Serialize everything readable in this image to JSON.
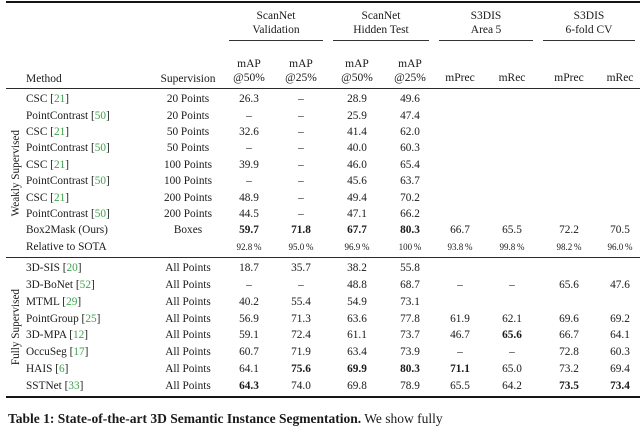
{
  "accent": {
    "cite_green": "#3fa34d",
    "rule_dark": "#151515"
  },
  "header": {
    "method": "Method",
    "supervision": "Supervision",
    "groups": [
      {
        "line1": "ScanNet",
        "line2": "Validation"
      },
      {
        "line1": "ScanNet",
        "line2": "Hidden Test"
      },
      {
        "line1": "S3DIS",
        "line2": "Area 5"
      },
      {
        "line1": "S3DIS",
        "line2": "6-fold CV"
      }
    ],
    "subcols": [
      {
        "top": "mAP",
        "bottom": "@50%"
      },
      {
        "top": "mAP",
        "bottom": "@25%"
      },
      {
        "top": "mAP",
        "bottom": "@50%"
      },
      {
        "top": "mAP",
        "bottom": "@25%"
      },
      {
        "top": "",
        "bottom": "mPrec"
      },
      {
        "top": "",
        "bottom": "mRec"
      },
      {
        "top": "",
        "bottom": "mPrec"
      },
      {
        "top": "",
        "bottom": "mRec"
      }
    ]
  },
  "sections": [
    {
      "label": "Weakly Supervised",
      "rows": [
        {
          "method": "CSC",
          "cite": "21",
          "sup": "20 Points",
          "vals": [
            "26.3",
            "–",
            "28.9",
            "49.6",
            "",
            "",
            "",
            ""
          ],
          "bold": []
        },
        {
          "method": "PointContrast",
          "cite": "50",
          "sup": "20 Points",
          "vals": [
            "–",
            "–",
            "25.9",
            "47.4",
            "",
            "",
            "",
            ""
          ],
          "bold": []
        },
        {
          "method": "CSC",
          "cite": "21",
          "sup": "50 Points",
          "vals": [
            "32.6",
            "–",
            "41.4",
            "62.0",
            "",
            "",
            "",
            ""
          ],
          "bold": []
        },
        {
          "method": "PointContrast",
          "cite": "50",
          "sup": "50 Points",
          "vals": [
            "–",
            "–",
            "40.0",
            "60.3",
            "",
            "",
            "",
            ""
          ],
          "bold": []
        },
        {
          "method": "CSC",
          "cite": "21",
          "sup": "100 Points",
          "vals": [
            "39.9",
            "–",
            "46.0",
            "65.4",
            "",
            "",
            "",
            ""
          ],
          "bold": []
        },
        {
          "method": "PointContrast",
          "cite": "50",
          "sup": "100 Points",
          "vals": [
            "–",
            "–",
            "45.6",
            "63.7",
            "",
            "",
            "",
            ""
          ],
          "bold": []
        },
        {
          "method": "CSC",
          "cite": "21",
          "sup": "200 Points",
          "vals": [
            "48.9",
            "–",
            "49.4",
            "70.2",
            "",
            "",
            "",
            ""
          ],
          "bold": []
        },
        {
          "method": "PointContrast",
          "cite": "50",
          "sup": "200 Points",
          "vals": [
            "44.5",
            "–",
            "47.1",
            "66.2",
            "",
            "",
            "",
            ""
          ],
          "bold": []
        },
        {
          "method": "Box2Mask (Ours)",
          "cite": "",
          "sup": "Boxes",
          "vals": [
            "59.7",
            "71.8",
            "67.7",
            "80.3",
            "66.7",
            "65.5",
            "72.2",
            "70.5"
          ],
          "bold": [
            0,
            1,
            2,
            3
          ]
        },
        {
          "method": "Relative to SOTA",
          "cite": "",
          "sup": "",
          "vals": [
            "92.8 %",
            "95.0 %",
            "96.9 %",
            "100 %",
            "93.8 %",
            "99.8 %",
            "98.2 %",
            "96.0 %"
          ],
          "bold": [],
          "small": true
        }
      ]
    },
    {
      "label": "Fully Supervised",
      "rows": [
        {
          "method": "3D-SIS",
          "cite": "20",
          "sup": "All Points",
          "vals": [
            "18.7",
            "35.7",
            "38.2",
            "55.8",
            "",
            "",
            "",
            ""
          ],
          "bold": []
        },
        {
          "method": "3D-BoNet",
          "cite": "52",
          "sup": "All Points",
          "vals": [
            "–",
            "–",
            "48.8",
            "68.7",
            "–",
            "–",
            "65.6",
            "47.6"
          ],
          "bold": []
        },
        {
          "method": "MTML",
          "cite": "29",
          "sup": "All Points",
          "vals": [
            "40.2",
            "55.4",
            "54.9",
            "73.1",
            "",
            "",
            "",
            ""
          ],
          "bold": []
        },
        {
          "method": "PointGroup",
          "cite": "25",
          "sup": "All Points",
          "vals": [
            "56.9",
            "71.3",
            "63.6",
            "77.8",
            "61.9",
            "62.1",
            "69.6",
            "69.2"
          ],
          "bold": []
        },
        {
          "method": "3D-MPA",
          "cite": "12",
          "sup": "All Points",
          "vals": [
            "59.1",
            "72.4",
            "61.1",
            "73.7",
            "46.7",
            "65.6",
            "66.7",
            "64.1"
          ],
          "bold": [
            5
          ]
        },
        {
          "method": "OccuSeg",
          "cite": "17",
          "sup": "All Points",
          "vals": [
            "60.7",
            "71.9",
            "63.4",
            "73.9",
            "–",
            "–",
            "72.8",
            "60.3"
          ],
          "bold": []
        },
        {
          "method": "HAIS",
          "cite": "6",
          "sup": "All Points",
          "vals": [
            "64.1",
            "75.6",
            "69.9",
            "80.3",
            "71.1",
            "65.0",
            "73.2",
            "69.4"
          ],
          "bold": [
            1,
            2,
            3,
            4
          ]
        },
        {
          "method": "SSTNet",
          "cite": "33",
          "sup": "All Points",
          "vals": [
            "64.3",
            "74.0",
            "69.8",
            "78.9",
            "65.5",
            "64.2",
            "73.5",
            "73.4"
          ],
          "bold": [
            0,
            6,
            7
          ]
        }
      ]
    }
  ],
  "caption": {
    "bold": "Table 1: State-of-the-art 3D Semantic Instance Segmentation.",
    "rest": " We show fully"
  }
}
